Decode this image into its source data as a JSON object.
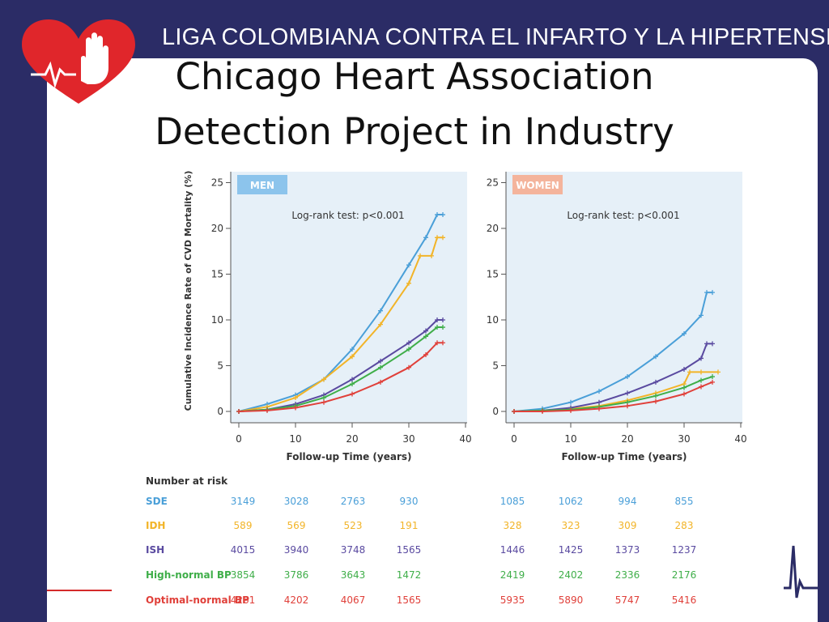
{
  "header": {
    "org_name": "LIGA COLOMBIANA CONTRA EL INFARTO Y LA HIPERTENSION",
    "title_line1": "Chicago Heart Association",
    "title_line2": "Detection Project in Industry"
  },
  "colors": {
    "background": "#2b2c66",
    "logo_red": "#e0262b",
    "SDE": "#4a9fd8",
    "IDH": "#f2b428",
    "ISH": "#5a4aa0",
    "High-normal BP": "#3fae49",
    "Optimal-normal BP": "#e0403a",
    "panel_bg": "#e6f0f8",
    "men_badge": "#8cc4ec",
    "women_badge": "#f4b49c"
  },
  "icons": [
    "heart-hand-logo-icon",
    "ecg-pulse-icon"
  ],
  "chart_data": [
    {
      "type": "line",
      "panel": "MEN",
      "annotation": "Log-rank test: p<0.001",
      "xlabel": "Follow-up Time (years)",
      "ylabel": "Cumulative Incidence Rate of CVD Mortality (%)",
      "xlim": [
        0,
        40
      ],
      "ylim": [
        0,
        25
      ],
      "xticks": [
        0,
        10,
        20,
        30,
        40
      ],
      "yticks": [
        0,
        5,
        10,
        15,
        20,
        25
      ],
      "series": [
        {
          "name": "SDE",
          "x": [
            0,
            5,
            10,
            15,
            20,
            25,
            30,
            33,
            35,
            36
          ],
          "y": [
            0,
            0.8,
            1.8,
            3.5,
            6.8,
            11,
            16,
            19,
            21.5,
            21.5
          ]
        },
        {
          "name": "IDH",
          "x": [
            0,
            5,
            10,
            15,
            20,
            25,
            30,
            32,
            34,
            35,
            36
          ],
          "y": [
            0,
            0.5,
            1.5,
            3.5,
            6,
            9.5,
            14,
            17,
            17,
            19,
            19
          ]
        },
        {
          "name": "ISH",
          "x": [
            0,
            5,
            10,
            15,
            20,
            25,
            30,
            33,
            35,
            36
          ],
          "y": [
            0,
            0.2,
            0.8,
            1.8,
            3.5,
            5.5,
            7.5,
            8.8,
            10,
            10
          ]
        },
        {
          "name": "High-normal BP",
          "x": [
            0,
            5,
            10,
            15,
            20,
            25,
            30,
            33,
            35,
            36
          ],
          "y": [
            0,
            0.2,
            0.6,
            1.5,
            3,
            4.8,
            6.8,
            8.2,
            9.2,
            9.2
          ]
        },
        {
          "name": "Optimal-normal BP",
          "x": [
            0,
            5,
            10,
            15,
            20,
            25,
            30,
            33,
            35,
            36
          ],
          "y": [
            0,
            0.1,
            0.4,
            1,
            1.9,
            3.2,
            4.8,
            6.2,
            7.5,
            7.5
          ]
        }
      ]
    },
    {
      "type": "line",
      "panel": "WOMEN",
      "annotation": "Log-rank test: p<0.001",
      "xlabel": "Follow-up Time (years)",
      "ylabel": "",
      "xlim": [
        0,
        40
      ],
      "ylim": [
        0,
        25
      ],
      "xticks": [
        0,
        10,
        20,
        30,
        40
      ],
      "yticks": [
        0,
        5,
        10,
        15,
        20,
        25
      ],
      "series": [
        {
          "name": "SDE",
          "x": [
            0,
            5,
            10,
            15,
            20,
            25,
            30,
            33,
            34,
            35
          ],
          "y": [
            0,
            0.3,
            1,
            2.2,
            3.8,
            6,
            8.5,
            10.5,
            13,
            13
          ]
        },
        {
          "name": "IDH",
          "x": [
            0,
            5,
            10,
            15,
            20,
            25,
            30,
            31,
            33,
            36
          ],
          "y": [
            0,
            0.1,
            0.3,
            0.6,
            1.2,
            2,
            3,
            4.3,
            4.3,
            4.3
          ]
        },
        {
          "name": "ISH",
          "x": [
            0,
            5,
            10,
            15,
            20,
            25,
            30,
            33,
            34,
            35
          ],
          "y": [
            0,
            0.1,
            0.4,
            1,
            2,
            3.2,
            4.6,
            5.8,
            7.4,
            7.4
          ]
        },
        {
          "name": "High-normal BP",
          "x": [
            0,
            5,
            10,
            15,
            20,
            25,
            30,
            33,
            35
          ],
          "y": [
            0,
            0.1,
            0.2,
            0.5,
            1,
            1.7,
            2.6,
            3.4,
            3.8
          ]
        },
        {
          "name": "Optimal-normal BP",
          "x": [
            0,
            5,
            10,
            15,
            20,
            25,
            30,
            33,
            35
          ],
          "y": [
            0,
            0,
            0.1,
            0.3,
            0.6,
            1.1,
            1.9,
            2.7,
            3.2
          ]
        }
      ]
    }
  ],
  "risk_table": {
    "title": "Number at risk",
    "rows": [
      {
        "label": "SDE",
        "men": [
          "3149",
          "3028",
          "2763",
          "930"
        ],
        "women": [
          "1085",
          "1062",
          "994",
          "855"
        ]
      },
      {
        "label": "IDH",
        "men": [
          "589",
          "569",
          "523",
          "191"
        ],
        "women": [
          "328",
          "323",
          "309",
          "283"
        ]
      },
      {
        "label": "ISH",
        "men": [
          "4015",
          "3940",
          "3748",
          "1565"
        ],
        "women": [
          "1446",
          "1425",
          "1373",
          "1237"
        ]
      },
      {
        "label": "High-normal BP",
        "men": [
          "3854",
          "3786",
          "3643",
          "1472"
        ],
        "women": [
          "2419",
          "2402",
          "2336",
          "2176"
        ]
      },
      {
        "label": "Optimal-normal BP",
        "men": [
          "4261",
          "4202",
          "4067",
          "1565"
        ],
        "women": [
          "5935",
          "5890",
          "5747",
          "5416"
        ]
      }
    ]
  }
}
